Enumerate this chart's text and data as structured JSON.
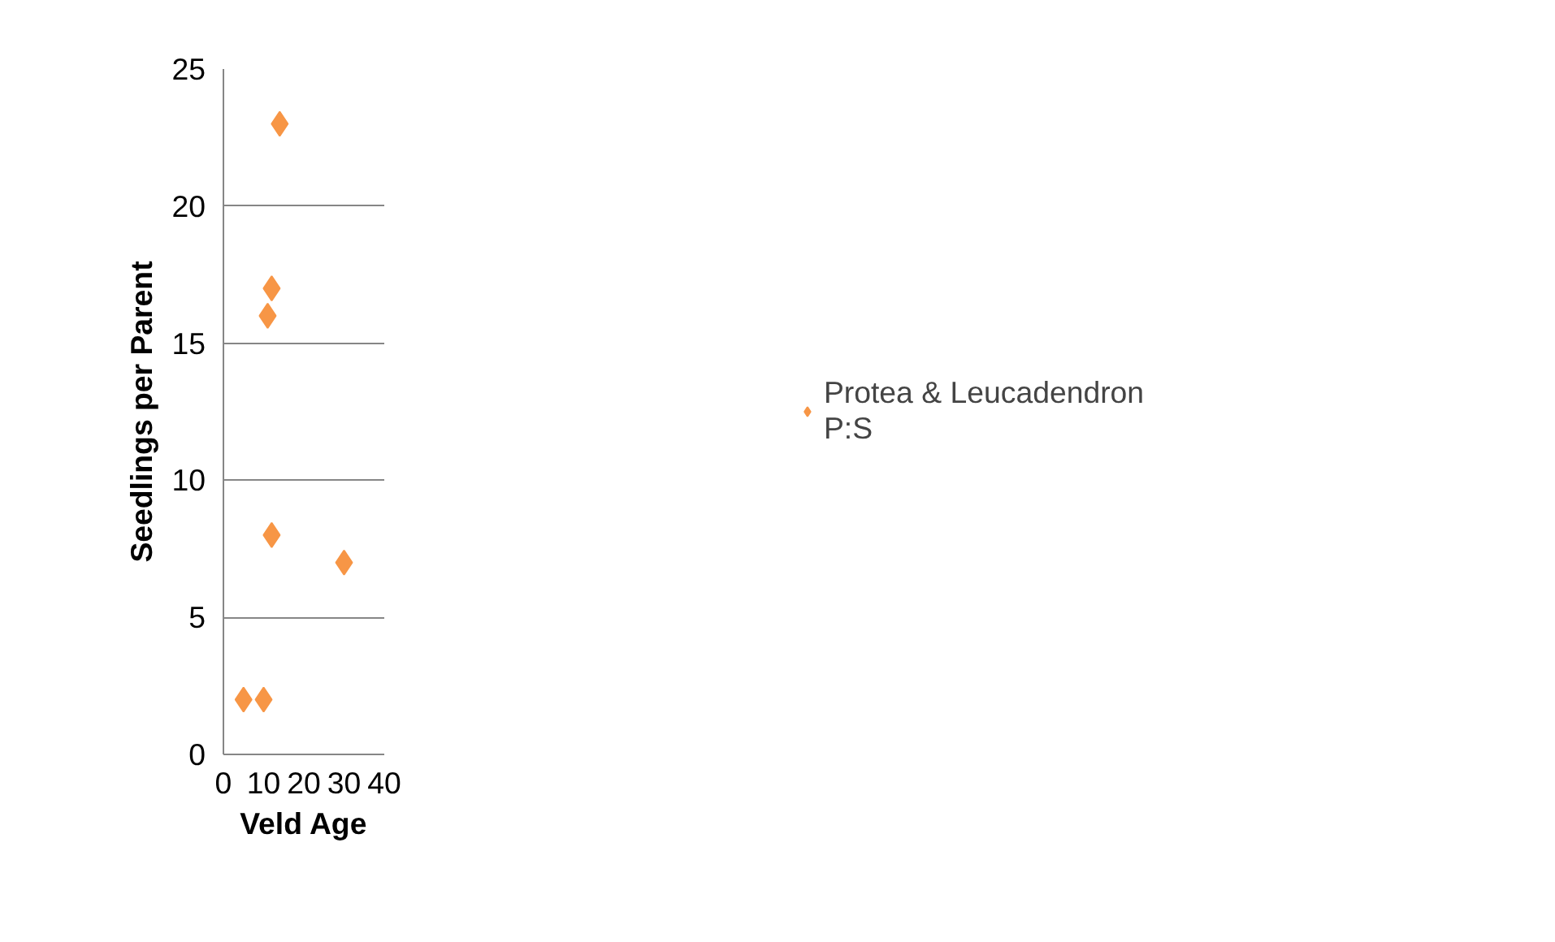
{
  "chart_data": {
    "type": "scatter",
    "xlabel": "Veld Age",
    "ylabel": "Seedlings per Parent",
    "x": [
      5,
      10,
      11,
      12,
      12,
      14,
      30
    ],
    "series": [
      {
        "name": "Protea & Leucadendron P:S",
        "color": "#f79646",
        "values": [
          2,
          2,
          16,
          17,
          8,
          23,
          7
        ]
      }
    ],
    "xlim": [
      0,
      40
    ],
    "xticks": [
      0,
      10,
      20,
      30,
      40
    ],
    "ylim": [
      0,
      25
    ],
    "yticks": [
      0,
      5,
      10,
      15,
      20,
      25
    ],
    "grid": "y",
    "legend": "right",
    "marker": "diamond"
  }
}
